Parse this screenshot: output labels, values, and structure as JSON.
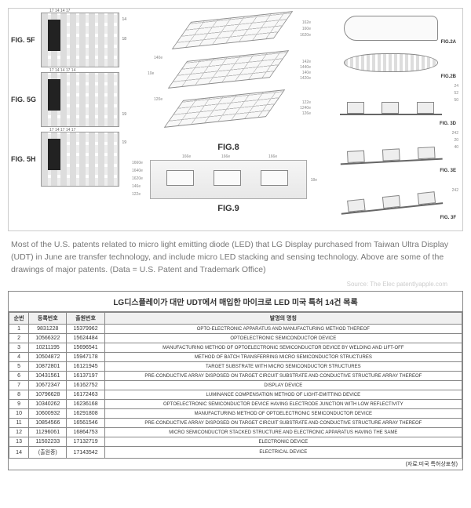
{
  "figures": {
    "left": [
      {
        "label": "FIG. 5F"
      },
      {
        "label": "FIG. 5G"
      },
      {
        "label": "FIG. 5H"
      }
    ],
    "mid": {
      "fig8": "FIG.8",
      "fig9": "FIG.9",
      "refs": {
        "top": [
          "162e",
          "160e",
          "1620e"
        ],
        "mid": [
          "142e",
          "1440e",
          "140e",
          "1420e"
        ],
        "bot": [
          "122e",
          "1240e",
          "126e"
        ],
        "left_top": "140e",
        "left_global": "10e",
        "left_bot": "120e",
        "cs": [
          "1660e",
          "1640e",
          "1620e",
          "146e",
          "1460e",
          "122e",
          "166e",
          "18e"
        ]
      }
    },
    "right": [
      {
        "label": "FIG.2A"
      },
      {
        "label": "FIG.2B"
      },
      {
        "label": "FIG. 3D"
      },
      {
        "label": "FIG. 3E"
      },
      {
        "label": "FIG. 3F"
      }
    ],
    "right_refs": [
      "24",
      "52",
      "50",
      "24",
      "242",
      "20",
      "40",
      "242"
    ]
  },
  "caption": "Most of the U.S. patents related to micro light emitting diode (LED) that LG Display purchased from Taiwan Ultra Display (UDT) in June are transfer technology, and include micro LED stacking and sensing technology. Above are some of the drawings of major patents. (Data = U.S. Patent and Trademark Office)",
  "source_line": "Source: The Elec    patentlyapple.com",
  "table": {
    "title": "LG디스플레이가 대만 UDT에서 매입한 마이크로 LED 미국 특허 14건 목록",
    "columns": [
      "순번",
      "등록번호",
      "출원번호",
      "발명의 명칭"
    ],
    "rows": [
      [
        "1",
        "9831228",
        "15379962",
        "OPTO-ELECTRONIC APPARATUS AND MANUFACTURING METHOD THEREOF"
      ],
      [
        "2",
        "10566322",
        "15624484",
        "OPTOELECTRONIC SEMICONDUCTOR DEVICE"
      ],
      [
        "3",
        "10211195",
        "15696541",
        "MANUFACTURING METHOD OF OPTOELECTRONIC SEMICONDUCTOR DEVICE BY WELDING AND LIFT-OFF"
      ],
      [
        "4",
        "10504872",
        "15947178",
        "METHOD OF BATCH TRANSFERRING MICRO SEMICONDUCTOR STRUCTURES"
      ],
      [
        "5",
        "10872801",
        "16121945",
        "TARGET SUBSTRATE WITH MICRO SEMICONDUCTOR STRUCTURES"
      ],
      [
        "6",
        "10431561",
        "16137197",
        "PRE-CONDUCTIVE ARRAY DISPOSED ON TARGET CIRCUIT SUBSTRATE AND CONDUCTIVE STRUCTURE ARRAY THEREOF"
      ],
      [
        "7",
        "10672347",
        "16162752",
        "DISPLAY DEVICE"
      ],
      [
        "8",
        "10796628",
        "16172463",
        "LUMINANCE COMPENSATION METHOD OF LIGHT-EMITTING DEVICE"
      ],
      [
        "9",
        "10340262",
        "16236168",
        "OPTOELECTRONIC SEMICONDUCTOR DEVICE HAVING ELECTRODE JUNCTION WITH LOW REFLECTIVITY"
      ],
      [
        "10",
        "10600932",
        "16291808",
        "MANUFACTURING METHOD OF OPTOELECTRONIC SEMICONDUCTOR DEVICE"
      ],
      [
        "11",
        "10854566",
        "16561546",
        "PRE-CONDUCTIVE ARRAY DISPOSED ON TARGET CIRCUIT SUBSTRATE AND CONDUCTIVE STRUCTURE ARRAY THEREOF"
      ],
      [
        "12",
        "11296061",
        "16864753",
        "MICRO SEMICONDUCTOR STACKED STRUCTURE AND ELECTRONIC APPARATUS HAVING THE SAME"
      ],
      [
        "13",
        "11502233",
        "17132719",
        "ELECTRONIC DEVICE"
      ],
      [
        "14",
        "(출원중)",
        "17143542",
        "ELECTRICAL DEVICE"
      ]
    ],
    "source": "(자료:미국 특허상표청)"
  }
}
